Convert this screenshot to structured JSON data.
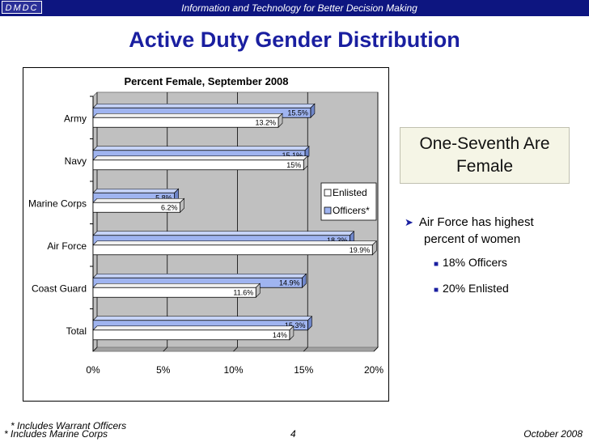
{
  "header": {
    "badge": "DMDC",
    "tagline": "Information and Technology for Better Decision Making"
  },
  "page_title": "Active Duty Gender Distribution",
  "callout": {
    "line1": "One-Seventh Are",
    "line2": "Female"
  },
  "bullets": {
    "main_line1": "Air Force has highest",
    "main_line2": "percent of women",
    "sub1": "18% Officers",
    "sub2": "20% Enlisted"
  },
  "footer": {
    "note1": "* Includes Warrant Officers",
    "note2": "* Includes Marine Corps",
    "page_number": "4",
    "date": "October 2008"
  },
  "colors": {
    "officers": "#9fb4f0",
    "enlisted": "#ffffff",
    "plot_bg": "#c0c0c0",
    "header_bg": "#0d1580",
    "title": "#1a1fa0"
  },
  "chart_data": {
    "type": "bar",
    "orientation": "horizontal",
    "title": "Percent Female, September 2008",
    "categories": [
      "Army",
      "Navy",
      "Marine Corps",
      "Air Force",
      "Coast Guard",
      "Total"
    ],
    "series": [
      {
        "name": "Officers*",
        "values": [
          15.5,
          15.1,
          5.8,
          18.3,
          14.9,
          15.3
        ],
        "labels": [
          "15.5%",
          "15.1%",
          "5.8%",
          "18.3%",
          "14.9%",
          "15.3%"
        ]
      },
      {
        "name": "Enlisted",
        "values": [
          13.2,
          15,
          6.2,
          19.9,
          11.6,
          14
        ],
        "labels": [
          "13.2%",
          "15%",
          "6.2%",
          "19.9%",
          "11.6%",
          "14%"
        ]
      }
    ],
    "xlim": [
      0,
      20
    ],
    "xticks": [
      "0%",
      "5%",
      "10%",
      "15%",
      "20%"
    ],
    "legend": [
      "Enlisted",
      "Officers*"
    ],
    "legend_position": "right"
  }
}
